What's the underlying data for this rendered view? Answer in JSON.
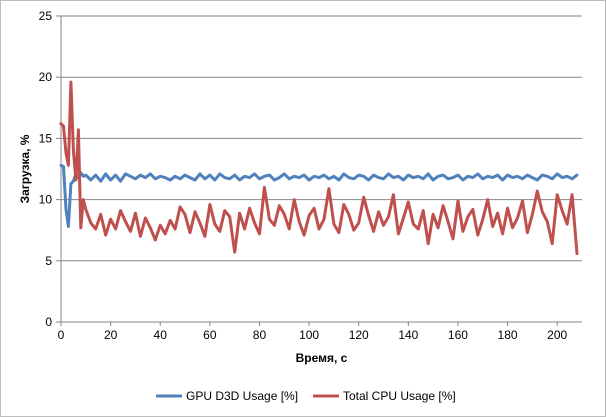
{
  "chart_data": {
    "type": "line",
    "xlabel": "Время, с",
    "ylabel": "Загрузка, %",
    "xlim": [
      0,
      210
    ],
    "ylim": [
      0,
      25
    ],
    "x_ticks": [
      0,
      20,
      40,
      60,
      80,
      100,
      120,
      140,
      160,
      180,
      200
    ],
    "y_ticks": [
      0,
      5,
      10,
      15,
      20,
      25
    ],
    "grid": "horizontal",
    "legend": "bottom",
    "series": [
      {
        "name": "GPU D3D Usage [%]",
        "color": "#4f81bd",
        "x": [
          0,
          1,
          2,
          3,
          4,
          5,
          6,
          7,
          8,
          9,
          10,
          12,
          14,
          16,
          18,
          20,
          22,
          24,
          26,
          28,
          30,
          32,
          34,
          36,
          38,
          40,
          42,
          44,
          46,
          48,
          50,
          52,
          54,
          56,
          58,
          60,
          62,
          64,
          66,
          68,
          70,
          72,
          74,
          76,
          78,
          80,
          82,
          84,
          86,
          88,
          90,
          92,
          94,
          96,
          98,
          100,
          102,
          104,
          106,
          108,
          110,
          112,
          114,
          116,
          118,
          120,
          122,
          124,
          126,
          128,
          130,
          132,
          134,
          136,
          138,
          140,
          142,
          144,
          146,
          148,
          150,
          152,
          154,
          156,
          158,
          160,
          162,
          164,
          166,
          168,
          170,
          172,
          174,
          176,
          178,
          180,
          182,
          184,
          186,
          188,
          190,
          192,
          194,
          196,
          198,
          200,
          202,
          204,
          206,
          208
        ],
        "values": [
          12.8,
          12.7,
          9.2,
          7.8,
          11.3,
          11.5,
          12.1,
          11.8,
          12.2,
          11.9,
          12.0,
          11.6,
          12.0,
          11.5,
          12.1,
          11.6,
          12.0,
          11.5,
          12.1,
          11.9,
          11.7,
          12.0,
          11.8,
          12.1,
          11.7,
          11.9,
          11.8,
          11.6,
          11.9,
          11.7,
          12.0,
          11.8,
          11.6,
          12.1,
          11.7,
          12.0,
          11.6,
          12.1,
          11.8,
          11.7,
          12.0,
          11.6,
          11.9,
          11.8,
          12.1,
          11.7,
          11.9,
          12.0,
          11.6,
          11.8,
          12.1,
          11.7,
          11.9,
          11.8,
          12.0,
          11.6,
          11.9,
          11.8,
          12.0,
          11.7,
          11.9,
          11.6,
          12.1,
          11.8,
          11.7,
          12.0,
          11.9,
          11.6,
          12.0,
          11.8,
          11.7,
          12.1,
          11.8,
          11.9,
          11.6,
          12.0,
          11.8,
          11.9,
          11.7,
          12.1,
          11.6,
          11.9,
          12.0,
          11.7,
          11.8,
          12.0,
          11.6,
          11.9,
          11.8,
          12.1,
          11.7,
          11.9,
          11.8,
          12.0,
          11.6,
          12.0,
          11.8,
          11.9,
          11.7,
          12.0,
          11.8,
          11.6,
          12.0,
          11.9,
          11.7,
          12.1,
          11.8,
          11.9,
          11.7,
          12.0
        ]
      },
      {
        "name": "Total CPU Usage [%]",
        "color": "#c0504d",
        "x": [
          0,
          1,
          2,
          3,
          4,
          5,
          6,
          7,
          8,
          9,
          10,
          12,
          14,
          16,
          18,
          20,
          22,
          24,
          26,
          28,
          30,
          32,
          34,
          36,
          38,
          40,
          42,
          44,
          46,
          48,
          50,
          52,
          54,
          56,
          58,
          60,
          62,
          64,
          66,
          68,
          70,
          72,
          74,
          76,
          78,
          80,
          82,
          84,
          86,
          88,
          90,
          92,
          94,
          96,
          98,
          100,
          102,
          104,
          106,
          108,
          110,
          112,
          114,
          116,
          118,
          120,
          122,
          124,
          126,
          128,
          130,
          132,
          134,
          136,
          138,
          140,
          142,
          144,
          146,
          148,
          150,
          152,
          154,
          156,
          158,
          160,
          162,
          164,
          166,
          168,
          170,
          172,
          174,
          176,
          178,
          180,
          182,
          184,
          186,
          188,
          190,
          192,
          194,
          196,
          198,
          200,
          202,
          204,
          206,
          208
        ],
        "values": [
          16.2,
          16.0,
          13.8,
          12.8,
          19.6,
          14.0,
          11.6,
          15.7,
          7.7,
          10.0,
          9.2,
          8.1,
          7.6,
          8.8,
          7.1,
          8.4,
          7.6,
          9.1,
          8.2,
          7.4,
          8.9,
          7.0,
          8.5,
          7.7,
          6.7,
          7.9,
          7.2,
          8.3,
          7.6,
          9.4,
          8.8,
          7.3,
          9.0,
          8.1,
          7.0,
          9.6,
          8.0,
          7.4,
          9.1,
          8.6,
          5.7,
          8.9,
          7.6,
          9.3,
          8.1,
          7.2,
          11.0,
          8.4,
          7.9,
          9.5,
          8.8,
          7.6,
          10.0,
          8.2,
          7.1,
          8.7,
          9.3,
          7.6,
          8.4,
          10.9,
          8.0,
          7.3,
          9.6,
          8.8,
          7.5,
          8.1,
          10.2,
          8.7,
          7.4,
          9.0,
          7.9,
          8.6,
          10.4,
          7.2,
          8.5,
          9.8,
          8.0,
          7.6,
          9.1,
          6.4,
          8.8,
          7.7,
          9.5,
          8.2,
          6.8,
          9.9,
          7.4,
          8.6,
          9.2,
          7.1,
          8.4,
          10.0,
          7.8,
          8.9,
          7.2,
          9.3,
          7.7,
          8.5,
          9.9,
          7.3,
          8.8,
          10.7,
          9.0,
          8.2,
          6.4,
          10.4,
          9.1,
          8.0,
          10.4,
          5.6
        ]
      }
    ]
  }
}
